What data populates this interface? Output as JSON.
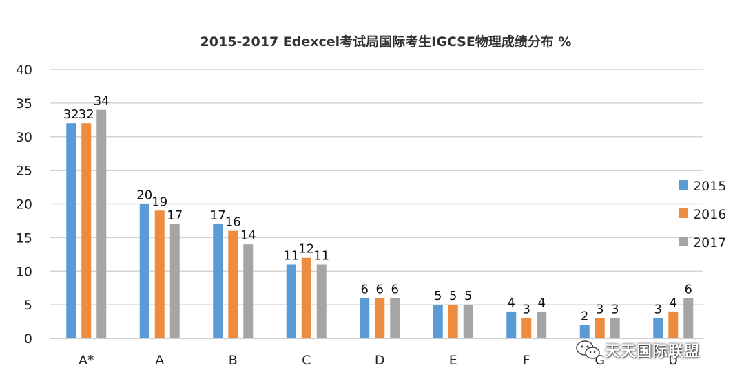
{
  "chart_data": {
    "type": "bar",
    "title": "2015-2017 Edexcel考试局国际考生IGCSE物理成绩分布 %",
    "categories": [
      "A*",
      "A",
      "B",
      "C",
      "D",
      "E",
      "F",
      "G",
      "U"
    ],
    "series": [
      {
        "name": "2015",
        "color": "#5b9bd5",
        "values": [
          32,
          20,
          17,
          11,
          6,
          5,
          4,
          2,
          3
        ]
      },
      {
        "name": "2016",
        "color": "#ed8b3e",
        "values": [
          32,
          19,
          16,
          12,
          6,
          5,
          3,
          3,
          4
        ]
      },
      {
        "name": "2017",
        "color": "#a5a5a5",
        "values": [
          34,
          17,
          14,
          11,
          6,
          5,
          4,
          3,
          6
        ]
      }
    ],
    "yticks": [
      0,
      5,
      10,
      15,
      20,
      25,
      30,
      35,
      40
    ],
    "ylim": [
      0,
      40
    ],
    "grid": true,
    "legend": "right"
  },
  "watermark": {
    "text": "天天国际联盟",
    "icon": "wechat-icon"
  }
}
